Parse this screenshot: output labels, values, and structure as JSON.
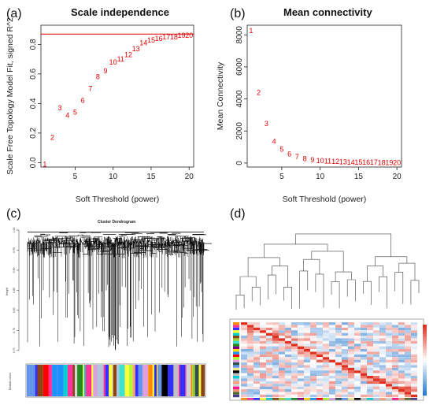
{
  "panels": {
    "a": {
      "label": "(a)",
      "title": "Scale independence"
    },
    "b": {
      "label": "(b)",
      "title": "Mean connectivity"
    },
    "c": {
      "label": "(c)",
      "title": "Cluster Dendrogram",
      "ylabel": "Height",
      "footer": "Module colors"
    },
    "d": {
      "label": "(d)"
    }
  },
  "chart_data": [
    {
      "type": "scatter",
      "title": "Scale independence",
      "xlabel": "Soft Threshold (power)",
      "ylabel": "Scale Free Topology Model Fit, signed R^2",
      "xlim": [
        0.5,
        20.6
      ],
      "ylim": [
        -0.03,
        0.93
      ],
      "xticks": [
        5,
        10,
        15,
        20
      ],
      "yticks": [
        0.0,
        0.2,
        0.4,
        0.6,
        0.8
      ],
      "x": [
        1,
        2,
        3,
        4,
        5,
        6,
        7,
        8,
        9,
        10,
        11,
        12,
        13,
        14,
        15,
        16,
        17,
        18,
        19,
        20
      ],
      "y": [
        -0.01,
        0.17,
        0.37,
        0.32,
        0.34,
        0.42,
        0.5,
        0.58,
        0.62,
        0.68,
        0.7,
        0.73,
        0.77,
        0.81,
        0.83,
        0.84,
        0.85,
        0.85,
        0.86,
        0.86
      ],
      "point_labels": [
        "1",
        "2",
        "3",
        "4",
        "5",
        "6",
        "7",
        "8",
        "9",
        "10",
        "11",
        "12",
        "13",
        "14",
        "15",
        "16",
        "17",
        "18",
        "19",
        "20"
      ],
      "hline": 0.87,
      "point_color": "#e00000"
    },
    {
      "type": "scatter",
      "title": "Mean connectivity",
      "xlabel": "Soft Threshold (power)",
      "ylabel": "Mean Connectivity",
      "xlim": [
        0.5,
        20.6
      ],
      "ylim": [
        -250,
        8600
      ],
      "xticks": [
        5,
        10,
        15,
        20
      ],
      "yticks": [
        0,
        2000,
        4000,
        6000,
        8000
      ],
      "x": [
        1,
        2,
        3,
        4,
        5,
        6,
        7,
        8,
        9,
        10,
        11,
        12,
        13,
        14,
        15,
        16,
        17,
        18,
        19,
        20
      ],
      "y": [
        8250,
        4400,
        2450,
        1350,
        850,
        550,
        380,
        260,
        190,
        140,
        110,
        85,
        70,
        55,
        45,
        40,
        35,
        30,
        25,
        22
      ],
      "point_labels": [
        "1",
        "2",
        "3",
        "4",
        "5",
        "6",
        "7",
        "8",
        "9",
        "10",
        "11",
        "12",
        "13",
        "14",
        "15",
        "16",
        "17",
        "18",
        "19",
        "20"
      ],
      "point_color": "#e00000"
    },
    {
      "type": "dendrogram",
      "title": "Cluster Dendrogram",
      "ylabel": "Height",
      "yticks": [
        0.7,
        0.75,
        0.8,
        0.85,
        0.9,
        0.95,
        1.0
      ],
      "ylim": [
        0.68,
        1.0
      ],
      "color_band": "Module colors"
    },
    {
      "type": "heatmap",
      "description_colors": {
        "high": "#e03020",
        "mid": "#ffffff",
        "low": "#2b7bd0"
      }
    }
  ]
}
